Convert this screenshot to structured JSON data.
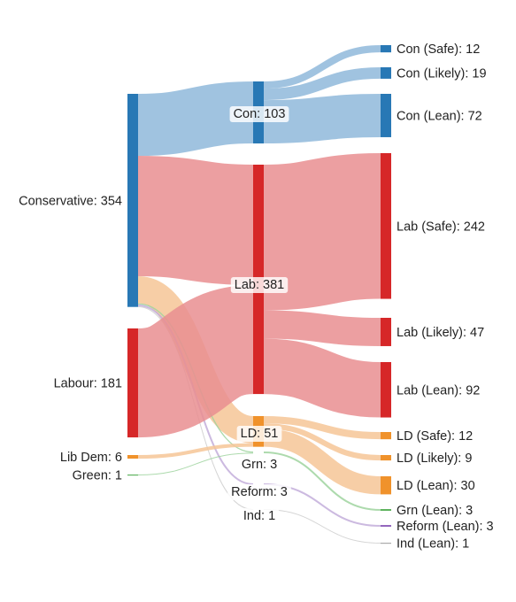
{
  "chart_data": {
    "type": "sankey",
    "title": "",
    "nodes": [
      {
        "id": "con_src",
        "label": "Conservative: 354",
        "name": "Conservative",
        "value": 354,
        "column": 0,
        "color": "#2878b5"
      },
      {
        "id": "lab_src",
        "label": "Labour: 181",
        "name": "Labour",
        "value": 181,
        "column": 0,
        "color": "#d62728"
      },
      {
        "id": "ld_src",
        "label": "Lib Dem: 6",
        "name": "Lib Dem",
        "value": 6,
        "column": 0,
        "color": "#f0922b"
      },
      {
        "id": "grn_src",
        "label": "Green: 1",
        "name": "Green",
        "value": 1,
        "column": 0,
        "color": "#5fb35f"
      },
      {
        "id": "con_mid",
        "label": "Con: 103",
        "name": "Con",
        "value": 103,
        "column": 1,
        "color": "#2878b5"
      },
      {
        "id": "lab_mid",
        "label": "Lab: 381",
        "name": "Lab",
        "value": 381,
        "column": 1,
        "color": "#d62728"
      },
      {
        "id": "ld_mid",
        "label": "LD: 51",
        "name": "LD",
        "value": 51,
        "column": 1,
        "color": "#f0922b"
      },
      {
        "id": "grn_mid",
        "label": "Grn: 3",
        "name": "Grn",
        "value": 3,
        "column": 1,
        "color": "#5fb35f"
      },
      {
        "id": "ref_mid",
        "label": "Reform: 3",
        "name": "Reform",
        "value": 3,
        "column": 1,
        "color": "#9467bd"
      },
      {
        "id": "ind_mid",
        "label": "Ind: 1",
        "name": "Ind",
        "value": 1,
        "column": 1,
        "color": "#aaaaaa"
      },
      {
        "id": "con_safe",
        "label": "Con (Safe): 12",
        "name": "Con (Safe)",
        "value": 12,
        "column": 2,
        "color": "#2878b5"
      },
      {
        "id": "con_likely",
        "label": "Con (Likely): 19",
        "name": "Con (Likely)",
        "value": 19,
        "column": 2,
        "color": "#2878b5"
      },
      {
        "id": "con_lean",
        "label": "Con (Lean): 72",
        "name": "Con (Lean)",
        "value": 72,
        "column": 2,
        "color": "#2878b5"
      },
      {
        "id": "lab_safe",
        "label": "Lab (Safe): 242",
        "name": "Lab (Safe)",
        "value": 242,
        "column": 2,
        "color": "#d62728"
      },
      {
        "id": "lab_likely",
        "label": "Lab (Likely): 47",
        "name": "Lab (Likely)",
        "value": 47,
        "column": 2,
        "color": "#d62728"
      },
      {
        "id": "lab_lean",
        "label": "Lab (Lean): 92",
        "name": "Lab (Lean)",
        "value": 92,
        "column": 2,
        "color": "#d62728"
      },
      {
        "id": "ld_safe",
        "label": "LD (Safe): 12",
        "name": "LD (Safe)",
        "value": 12,
        "column": 2,
        "color": "#f0922b"
      },
      {
        "id": "ld_likely",
        "label": "LD (Likely): 9",
        "name": "LD (Likely)",
        "value": 9,
        "column": 2,
        "color": "#f0922b"
      },
      {
        "id": "ld_lean",
        "label": "LD (Lean): 30",
        "name": "LD (Lean)",
        "value": 30,
        "column": 2,
        "color": "#f0922b"
      },
      {
        "id": "grn_lean",
        "label": "Grn (Lean): 3",
        "name": "Grn (Lean)",
        "value": 3,
        "column": 2,
        "color": "#5fb35f"
      },
      {
        "id": "ref_lean",
        "label": "Reform (Lean): 3",
        "name": "Reform (Lean)",
        "value": 3,
        "column": 2,
        "color": "#9467bd"
      },
      {
        "id": "ind_lean",
        "label": "Ind (Lean): 1",
        "name": "Ind (Lean)",
        "value": 1,
        "column": 2,
        "color": "#aaaaaa"
      }
    ],
    "links": [
      {
        "source": "con_src",
        "target": "con_mid",
        "value": 103,
        "color": "#8fb9da"
      },
      {
        "source": "con_src",
        "target": "lab_mid",
        "value": 200,
        "color": "#e98e91"
      },
      {
        "source": "con_src",
        "target": "ld_mid",
        "value": 45,
        "color": "#f6c596"
      },
      {
        "source": "con_src",
        "target": "grn_mid",
        "value": 2,
        "color": "#9fd39f"
      },
      {
        "source": "con_src",
        "target": "ref_mid",
        "value": 3,
        "color": "#c3aedb"
      },
      {
        "source": "con_src",
        "target": "ind_mid",
        "value": 1,
        "color": "#cccccc"
      },
      {
        "source": "lab_src",
        "target": "lab_mid",
        "value": 181,
        "color": "#e98e91"
      },
      {
        "source": "ld_src",
        "target": "ld_mid",
        "value": 6,
        "color": "#f6c596"
      },
      {
        "source": "grn_src",
        "target": "grn_mid",
        "value": 1,
        "color": "#9fd39f"
      },
      {
        "source": "con_mid",
        "target": "con_safe",
        "value": 12,
        "color": "#8fb9da"
      },
      {
        "source": "con_mid",
        "target": "con_likely",
        "value": 19,
        "color": "#8fb9da"
      },
      {
        "source": "con_mid",
        "target": "con_lean",
        "value": 72,
        "color": "#8fb9da"
      },
      {
        "source": "lab_mid",
        "target": "lab_safe",
        "value": 242,
        "color": "#e98e91"
      },
      {
        "source": "lab_mid",
        "target": "lab_likely",
        "value": 47,
        "color": "#e98e91"
      },
      {
        "source": "lab_mid",
        "target": "lab_lean",
        "value": 92,
        "color": "#e98e91"
      },
      {
        "source": "ld_mid",
        "target": "ld_safe",
        "value": 12,
        "color": "#f6c596"
      },
      {
        "source": "ld_mid",
        "target": "ld_likely",
        "value": 9,
        "color": "#f6c596"
      },
      {
        "source": "ld_mid",
        "target": "ld_lean",
        "value": 30,
        "color": "#f6c596"
      },
      {
        "source": "grn_mid",
        "target": "grn_lean",
        "value": 3,
        "color": "#9fd39f"
      },
      {
        "source": "ref_mid",
        "target": "ref_lean",
        "value": 3,
        "color": "#c3aedb"
      },
      {
        "source": "ind_mid",
        "target": "ind_lean",
        "value": 1,
        "color": "#cccccc"
      }
    ]
  }
}
